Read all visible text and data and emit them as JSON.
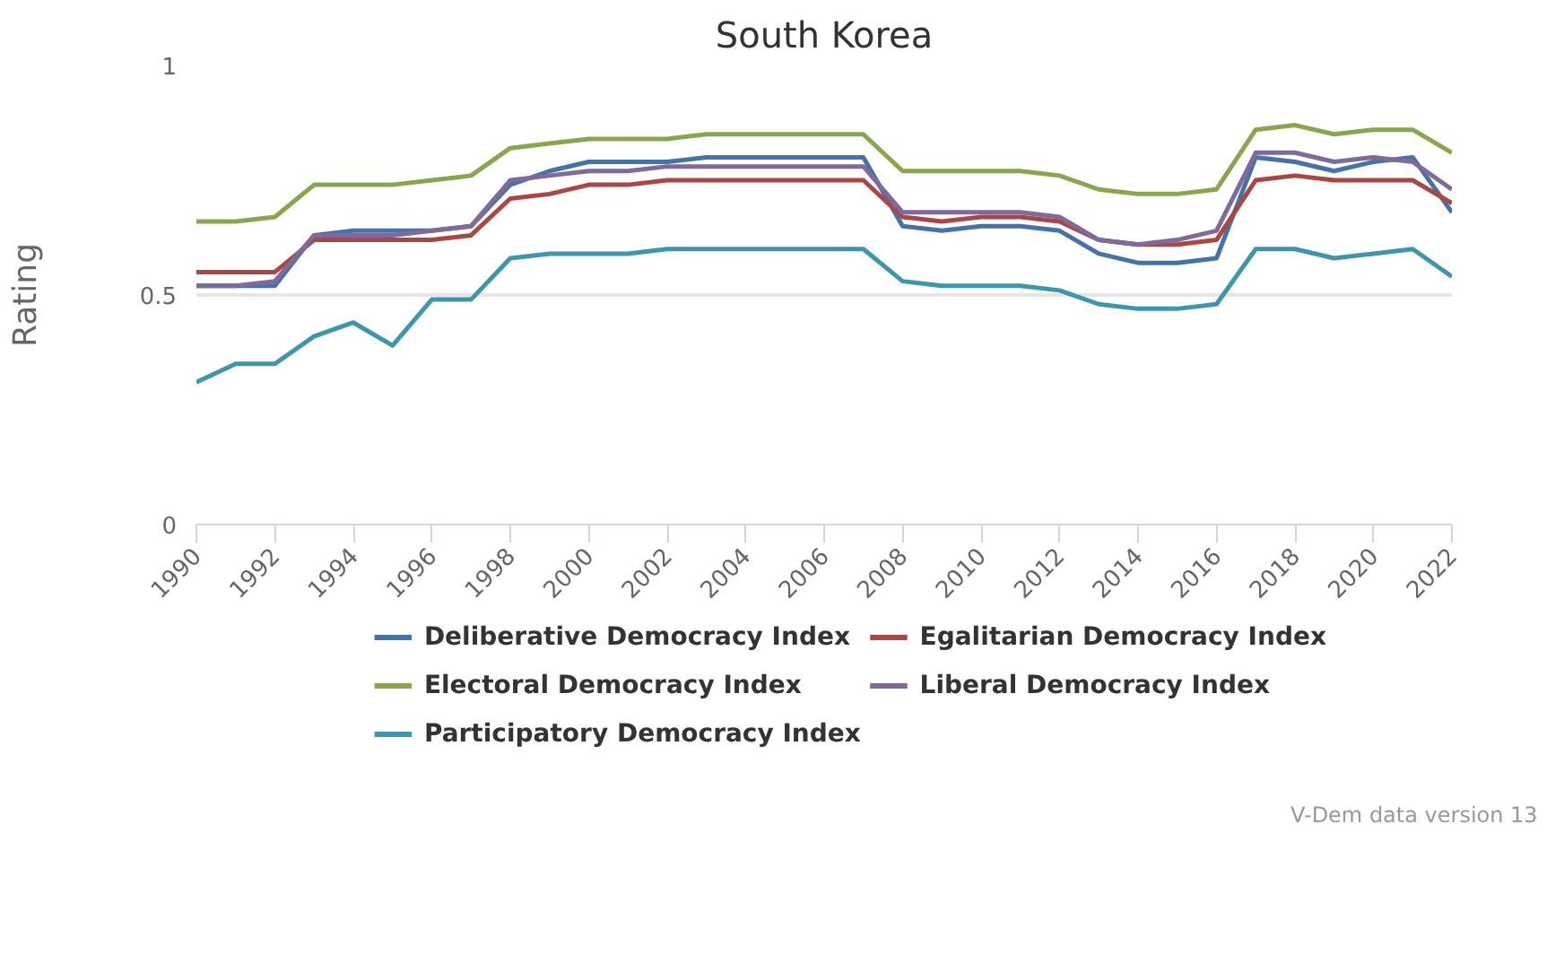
{
  "chart_data": {
    "type": "line",
    "title": "South Korea",
    "ylabel": "Rating",
    "x": [
      1990,
      1991,
      1992,
      1993,
      1994,
      1995,
      1996,
      1997,
      1998,
      1999,
      2000,
      2001,
      2002,
      2003,
      2004,
      2005,
      2006,
      2007,
      2008,
      2009,
      2010,
      2011,
      2012,
      2013,
      2014,
      2015,
      2016,
      2017,
      2018,
      2019,
      2020,
      2021,
      2022
    ],
    "xlim": [
      1990,
      2022
    ],
    "xticks": [
      1990,
      1992,
      1994,
      1996,
      1998,
      2000,
      2002,
      2004,
      2006,
      2008,
      2010,
      2012,
      2014,
      2016,
      2018,
      2020,
      2022
    ],
    "ylim": [
      0,
      1
    ],
    "yticks": [
      0,
      0.5,
      1
    ],
    "grid": "y",
    "legend": "bottom",
    "marker": "none",
    "line_style": "solid",
    "series": [
      {
        "name": "Deliberative Democracy Index",
        "color": "#4572a7",
        "values": [
          0.52,
          0.52,
          0.52,
          0.63,
          0.64,
          0.64,
          0.64,
          0.65,
          0.74,
          0.77,
          0.79,
          0.79,
          0.79,
          0.8,
          0.8,
          0.8,
          0.8,
          0.8,
          0.65,
          0.64,
          0.65,
          0.65,
          0.64,
          0.59,
          0.57,
          0.57,
          0.58,
          0.8,
          0.79,
          0.77,
          0.79,
          0.8,
          0.68
        ]
      },
      {
        "name": "Egalitarian Democracy Index",
        "color": "#aa4643",
        "values": [
          0.55,
          0.55,
          0.55,
          0.62,
          0.62,
          0.62,
          0.62,
          0.63,
          0.71,
          0.72,
          0.74,
          0.74,
          0.75,
          0.75,
          0.75,
          0.75,
          0.75,
          0.75,
          0.67,
          0.66,
          0.67,
          0.67,
          0.66,
          0.62,
          0.61,
          0.61,
          0.62,
          0.75,
          0.76,
          0.75,
          0.75,
          0.75,
          0.7
        ]
      },
      {
        "name": "Electoral Democracy Index",
        "color": "#89a54e",
        "values": [
          0.66,
          0.66,
          0.67,
          0.74,
          0.74,
          0.74,
          0.75,
          0.76,
          0.82,
          0.83,
          0.84,
          0.84,
          0.84,
          0.85,
          0.85,
          0.85,
          0.85,
          0.85,
          0.77,
          0.77,
          0.77,
          0.77,
          0.76,
          0.73,
          0.72,
          0.72,
          0.73,
          0.86,
          0.87,
          0.85,
          0.86,
          0.86,
          0.81
        ]
      },
      {
        "name": "Liberal Democracy Index",
        "color": "#80699b",
        "values": [
          0.52,
          0.52,
          0.53,
          0.63,
          0.63,
          0.63,
          0.64,
          0.65,
          0.75,
          0.76,
          0.77,
          0.77,
          0.78,
          0.78,
          0.78,
          0.78,
          0.78,
          0.78,
          0.68,
          0.68,
          0.68,
          0.68,
          0.67,
          0.62,
          0.61,
          0.62,
          0.64,
          0.81,
          0.81,
          0.79,
          0.8,
          0.79,
          0.73
        ]
      },
      {
        "name": "Participatory Democracy Index",
        "color": "#3d96ae",
        "values": [
          0.31,
          0.35,
          0.35,
          0.41,
          0.44,
          0.39,
          0.49,
          0.49,
          0.58,
          0.59,
          0.59,
          0.59,
          0.6,
          0.6,
          0.6,
          0.6,
          0.6,
          0.6,
          0.53,
          0.52,
          0.52,
          0.52,
          0.51,
          0.48,
          0.47,
          0.47,
          0.48,
          0.6,
          0.6,
          0.58,
          0.59,
          0.6,
          0.54
        ]
      }
    ],
    "annotations": [
      "V-Dem data version 13"
    ]
  }
}
